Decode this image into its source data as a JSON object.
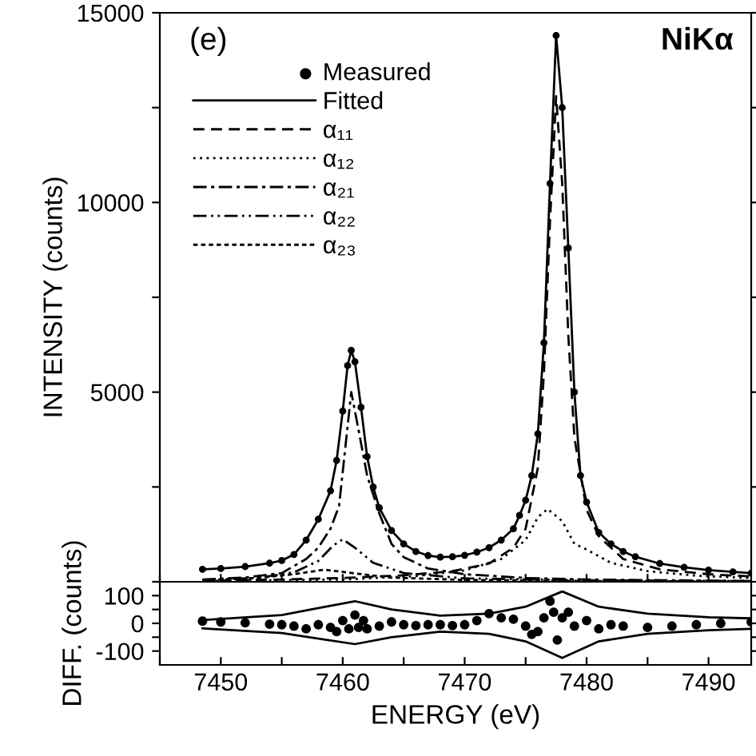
{
  "chart_data": [
    {
      "type": "line",
      "ylabel": "INTENSITY (counts)",
      "annotations": [
        "(e)",
        "NiKα"
      ],
      "legend": "top left",
      "tick_labels": "y",
      "xlim": [
        7445,
        7493.5
      ],
      "xticks": [
        {
          "value": 7445,
          "label": null
        },
        {
          "value": 7450,
          "label": null
        },
        {
          "value": 7455,
          "label": null
        },
        {
          "value": 7460,
          "label": null
        },
        {
          "value": 7465,
          "label": null
        },
        {
          "value": 7470,
          "label": null
        },
        {
          "value": 7475,
          "label": null
        },
        {
          "value": 7480,
          "label": null
        },
        {
          "value": 7485,
          "label": null
        },
        {
          "value": 7490,
          "label": null
        }
      ],
      "ylim": [
        0,
        15000
      ],
      "yticks": [
        {
          "value": 0,
          "label": null
        },
        {
          "value": 2500,
          "label": null
        },
        5000,
        {
          "value": 7500,
          "label": null
        },
        10000,
        {
          "value": 12500,
          "label": null
        },
        15000
      ],
      "series": [
        {
          "name": "Measured",
          "type": "scatter",
          "marker": "circle",
          "color": "#000000",
          "x": [
            7448.5,
            7450,
            7452,
            7454,
            7455,
            7456,
            7457,
            7458,
            7459,
            7459.5,
            7460,
            7460.4,
            7460.7,
            7461,
            7461.5,
            7462,
            7462.5,
            7463,
            7464,
            7465,
            7466,
            7467,
            7468,
            7469,
            7470,
            7471,
            7472,
            7473,
            7474,
            7474.5,
            7475,
            7475.5,
            7476,
            7476.5,
            7477,
            7477.5,
            7478,
            7478.5,
            7479,
            7479.5,
            7480,
            7481,
            7482,
            7483,
            7484,
            7486,
            7488,
            7490,
            7492,
            7493.5
          ],
          "values": [
            330,
            350,
            400,
            490,
            560,
            720,
            1100,
            1650,
            2400,
            3200,
            4500,
            5700,
            6100,
            5800,
            4600,
            3300,
            2500,
            1950,
            1350,
            1000,
            800,
            690,
            650,
            660,
            700,
            780,
            900,
            1100,
            1400,
            1750,
            2150,
            2800,
            3900,
            6300,
            10500,
            14400,
            12500,
            8800,
            5000,
            2800,
            2100,
            1300,
            1000,
            800,
            660,
            480,
            380,
            310,
            260,
            230
          ]
        },
        {
          "name": "Fitted",
          "line_style": "solid",
          "color": "#000000",
          "x": [
            7448.5,
            7450,
            7452,
            7454,
            7455,
            7456,
            7457,
            7458,
            7459,
            7459.5,
            7460,
            7460.4,
            7460.7,
            7461,
            7461.5,
            7462,
            7462.5,
            7463,
            7464,
            7465,
            7466,
            7467,
            7468,
            7469,
            7470,
            7471,
            7472,
            7473,
            7474,
            7474.5,
            7475,
            7475.5,
            7476,
            7476.5,
            7477,
            7477.5,
            7478,
            7478.5,
            7479,
            7479.5,
            7480,
            7481,
            7482,
            7483,
            7484,
            7486,
            7488,
            7490,
            7492,
            7493.5
          ],
          "values": [
            330,
            350,
            400,
            490,
            560,
            720,
            1100,
            1650,
            2400,
            3200,
            4500,
            5700,
            6100,
            5800,
            4600,
            3300,
            2500,
            1950,
            1350,
            1000,
            800,
            690,
            650,
            660,
            700,
            780,
            900,
            1100,
            1400,
            1750,
            2150,
            2800,
            3900,
            6300,
            10500,
            14400,
            12500,
            8800,
            5000,
            2800,
            2100,
            1300,
            1000,
            800,
            660,
            480,
            380,
            310,
            260,
            230
          ]
        },
        {
          "name": "α₁₁",
          "line_style": "dashed",
          "color": "#000000",
          "x": [
            7448.5,
            7455,
            7460,
            7465,
            7469,
            7472,
            7474,
            7475,
            7476,
            7476.5,
            7477,
            7477.5,
            7478,
            7478.5,
            7479,
            7480,
            7481,
            7483,
            7486,
            7490,
            7493.5
          ],
          "values": [
            30,
            60,
            100,
            170,
            280,
            480,
            900,
            1400,
            3000,
            5500,
            9500,
            12800,
            10500,
            6500,
            3800,
            1900,
            1200,
            600,
            330,
            200,
            140
          ]
        },
        {
          "name": "α₁₂",
          "line_style": "dotted",
          "color": "#000000",
          "x": [
            7448.5,
            7460,
            7466,
            7470,
            7473,
            7475,
            7476,
            7476.8,
            7478,
            7479,
            7480,
            7482,
            7485,
            7489,
            7493.5
          ],
          "values": [
            20,
            60,
            150,
            300,
            600,
            1100,
            1700,
            1920,
            1600,
            1000,
            850,
            500,
            280,
            160,
            100
          ]
        },
        {
          "name": "α₂₁",
          "line_style": "dashdot",
          "color": "#000000",
          "x": [
            7448.5,
            7452,
            7455,
            7457,
            7458,
            7459,
            7459.7,
            7460.2,
            7460.7,
            7461.3,
            7462,
            7463,
            7464,
            7465,
            7467,
            7470,
            7475,
            7480,
            7493.5
          ],
          "values": [
            60,
            110,
            230,
            600,
            900,
            1400,
            2000,
            3500,
            5000,
            4000,
            2800,
            1800,
            1000,
            650,
            350,
            200,
            100,
            60,
            20
          ]
        },
        {
          "name": "α₂₂",
          "line_style": "dashdotdot",
          "color": "#000000",
          "x": [
            7448.5,
            7453,
            7456,
            7458,
            7459.2,
            7460,
            7461,
            7462.5,
            7465,
            7470,
            7480,
            7493.5
          ],
          "values": [
            40,
            100,
            250,
            550,
            950,
            1120,
            900,
            500,
            230,
            90,
            40,
            20
          ]
        },
        {
          "name": "α₂₃",
          "line_style": "densedashed",
          "color": "#000000",
          "x": [
            7448.5,
            7453,
            7456,
            7458.5,
            7461,
            7464,
            7470,
            7480,
            7493.5
          ],
          "values": [
            40,
            100,
            200,
            320,
            220,
            110,
            50,
            20,
            10
          ]
        }
      ]
    },
    {
      "type": "line",
      "xlabel": "ENERGY (eV)",
      "ylabel": "DIFF. (counts)",
      "xlim": [
        7445,
        7493.5
      ],
      "xticks": [
        {
          "value": 7445,
          "label": null
        },
        7450,
        {
          "value": 7455,
          "label": null
        },
        7460,
        {
          "value": 7465,
          "label": null
        },
        7470,
        {
          "value": 7475,
          "label": null
        },
        7480,
        {
          "value": 7485,
          "label": null
        },
        7490
      ],
      "ylim": [
        -150,
        150
      ],
      "yticks": [
        -100,
        {
          "value": -50,
          "label": null
        },
        0,
        {
          "value": 50,
          "label": null
        },
        100
      ],
      "series": [
        {
          "type": "scatter",
          "marker": "circle",
          "color": "#000000",
          "x": [
            7448.5,
            7450,
            7452,
            7454,
            7455,
            7456,
            7457,
            7458,
            7459,
            7459.5,
            7460,
            7460.5,
            7461,
            7461.3,
            7461.7,
            7462,
            7463,
            7464,
            7465,
            7466,
            7467,
            7468,
            7469,
            7470,
            7471,
            7472,
            7473,
            7474,
            7475,
            7475.5,
            7476,
            7476.5,
            7477,
            7477.3,
            7477.6,
            7478,
            7478.5,
            7479,
            7480,
            7481,
            7482,
            7483,
            7485,
            7487,
            7489,
            7491,
            7493.5
          ],
          "values": [
            8,
            5,
            2,
            -3,
            -5,
            -10,
            -20,
            -5,
            -15,
            -30,
            10,
            -20,
            30,
            -15,
            10,
            -20,
            -10,
            5,
            -5,
            -8,
            -5,
            -5,
            -8,
            -5,
            10,
            35,
            20,
            15,
            -10,
            -40,
            -30,
            20,
            80,
            40,
            -60,
            20,
            40,
            -10,
            10,
            -20,
            -5,
            -10,
            -15,
            -10,
            -5,
            0,
            5
          ]
        },
        {
          "line_style": "solid",
          "color": "#000000",
          "x": [
            7448.5,
            7455,
            7458,
            7461,
            7464,
            7468,
            7472,
            7475,
            7478,
            7481,
            7485,
            7490,
            7493.5
          ],
          "values": [
            12,
            30,
            55,
            80,
            50,
            28,
            35,
            60,
            115,
            60,
            35,
            22,
            18
          ]
        },
        {
          "line_style": "solid",
          "color": "#000000",
          "x": [
            7448.5,
            7455,
            7458,
            7461,
            7464,
            7468,
            7472,
            7475,
            7478,
            7481,
            7485,
            7490,
            7493.5
          ],
          "values": [
            -18,
            -35,
            -55,
            -75,
            -50,
            -30,
            -38,
            -65,
            -125,
            -65,
            -38,
            -25,
            -20
          ]
        }
      ]
    }
  ]
}
